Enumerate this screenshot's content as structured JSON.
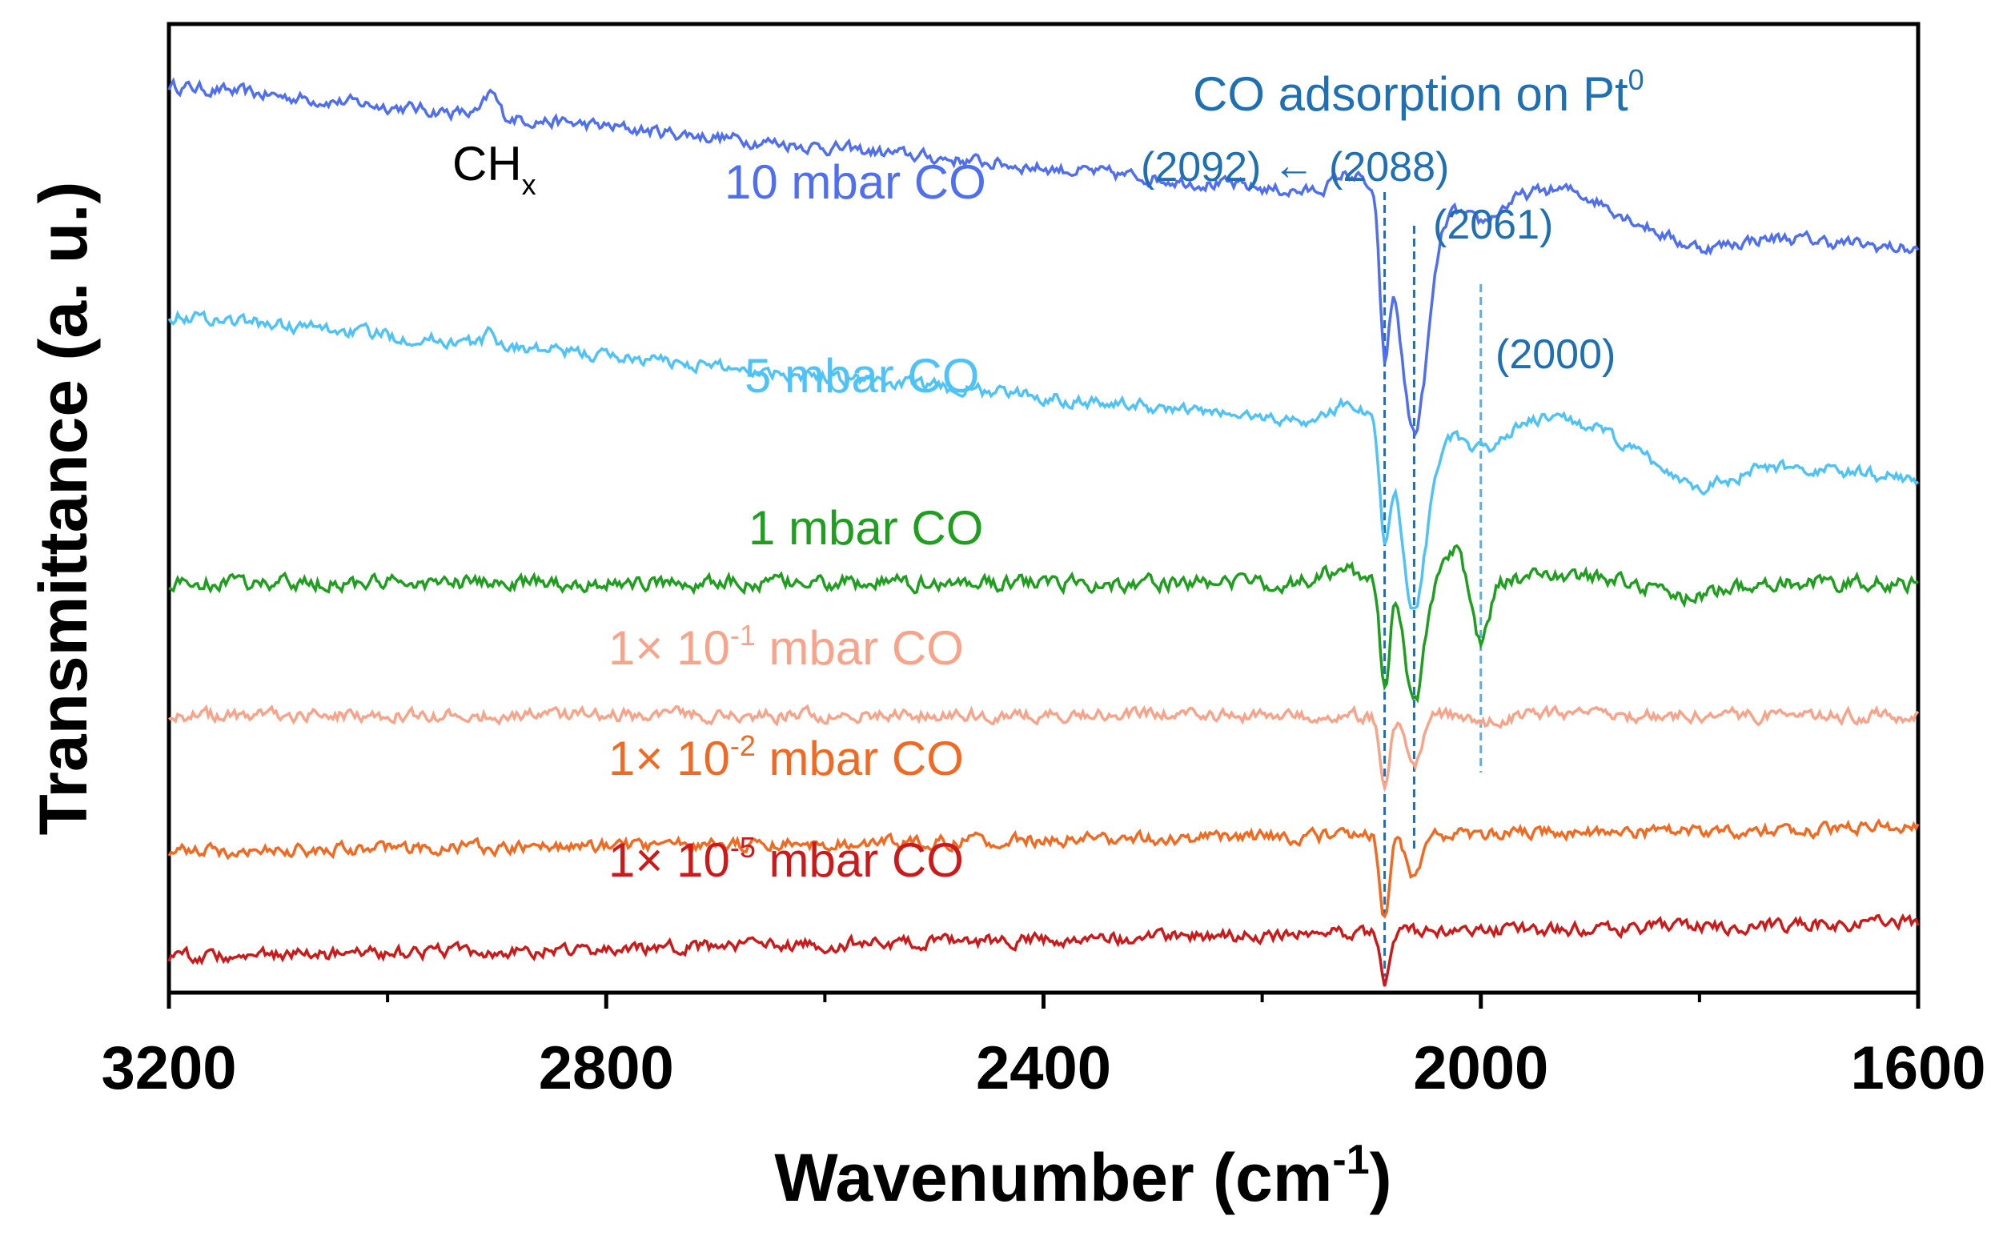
{
  "chart_data": {
    "type": "line",
    "xlabel": "Wavenumber (cm",
    "xlabel_sup": "-1",
    "xlabel_close": ")",
    "ylabel": "Transmittance (a. u.)",
    "xlim": [
      3200,
      1600
    ],
    "x_reversed": true,
    "x_ticks": [
      3200,
      2800,
      2400,
      2000,
      1600
    ],
    "x_tick_labels": [
      "3200",
      "2800",
      "2400",
      "2000",
      "1600"
    ],
    "x_minor_ticks": [
      3000,
      2600,
      2200,
      1800
    ],
    "ylim": [
      -0.05,
      1.05
    ],
    "y_ticks_shown": false,
    "grid": false,
    "series": [
      {
        "name": "10 mbar CO",
        "color": "#4f6ff0",
        "offset": 0.84,
        "slope": 0.14,
        "noise": 0.006,
        "label_parts": [
          {
            "t": "10 mbar CO"
          }
        ],
        "features": [
          {
            "x": 2905,
            "w": 8,
            "a": 0.025
          },
          {
            "x": 2120,
            "w": 22,
            "a": 0.025
          },
          {
            "x": 2088,
            "w": 6,
            "a": -0.16
          },
          {
            "x": 2061,
            "w": 18,
            "a": -0.26
          },
          {
            "x": 2000,
            "w": 20,
            "a": -0.02
          },
          {
            "x": 1925,
            "w": 55,
            "a": 0.03
          },
          {
            "x": 1800,
            "w": 45,
            "a": -0.02
          }
        ]
      },
      {
        "name": "5 mbar CO",
        "color": "#4fc3f7",
        "offset": 0.58,
        "slope": 0.14,
        "noise": 0.006,
        "label_parts": [
          {
            "t": "5 mbar CO"
          }
        ],
        "features": [
          {
            "x": 2905,
            "w": 8,
            "a": 0.012
          },
          {
            "x": 2120,
            "w": 22,
            "a": 0.025
          },
          {
            "x": 2088,
            "w": 6,
            "a": -0.12
          },
          {
            "x": 2061,
            "w": 16,
            "a": -0.2
          },
          {
            "x": 2000,
            "w": 20,
            "a": -0.02
          },
          {
            "x": 1925,
            "w": 55,
            "a": 0.03
          },
          {
            "x": 1800,
            "w": 45,
            "a": -0.03
          }
        ]
      },
      {
        "name": "1 mbar CO",
        "color": "#1f9e1f",
        "offset": 0.415,
        "slope": 0.0,
        "noise": 0.007,
        "label_parts": [
          {
            "t": "1 mbar CO"
          }
        ],
        "features": [
          {
            "x": 2130,
            "w": 25,
            "a": 0.015
          },
          {
            "x": 2088,
            "w": 6,
            "a": -0.12
          },
          {
            "x": 2061,
            "w": 12,
            "a": -0.14
          },
          {
            "x": 2025,
            "w": 12,
            "a": 0.04
          },
          {
            "x": 2000,
            "w": 10,
            "a": -0.07
          },
          {
            "x": 1925,
            "w": 50,
            "a": 0.01
          },
          {
            "x": 1810,
            "w": 40,
            "a": -0.015
          }
        ]
      },
      {
        "name": "1× 10-1 mbar CO",
        "color": "#f7a48a",
        "offset": 0.265,
        "slope": 0.0,
        "noise": 0.006,
        "label_parts": [
          {
            "t": "1× 10"
          },
          {
            "t": "-1",
            "sup": true
          },
          {
            "t": "  mbar CO"
          }
        ],
        "features": [
          {
            "x": 2088,
            "w": 6,
            "a": -0.09
          },
          {
            "x": 2061,
            "w": 10,
            "a": -0.06
          },
          {
            "x": 2000,
            "w": 20,
            "a": -0.01
          }
        ]
      },
      {
        "name": "1× 10-2 mbar CO",
        "color": "#f26a21",
        "offset": 0.13,
        "slope": -0.02,
        "noise": 0.006,
        "label_parts": [
          {
            "t": "1× 10"
          },
          {
            "t": "-2",
            "sup": true
          },
          {
            "t": "  mbar CO"
          }
        ],
        "features": [
          {
            "x": 2088,
            "w": 6,
            "a": -0.095
          },
          {
            "x": 2061,
            "w": 10,
            "a": -0.05
          }
        ]
      },
      {
        "name": "1× 10-5 mbar CO",
        "color": "#cc1a1a",
        "offset": 0.02,
        "slope": -0.03,
        "noise": 0.006,
        "label_parts": [
          {
            "t": "1× 10"
          },
          {
            "t": "-5",
            "sup": true
          },
          {
            "t": "  mbar CO"
          }
        ],
        "features": [
          {
            "x": 2088,
            "w": 6,
            "a": -0.06
          }
        ]
      }
    ],
    "reference_lines": [
      {
        "x": 2088,
        "color": "#1f6fb3"
      },
      {
        "x": 2061,
        "color": "#1f6fb3"
      },
      {
        "x": 2000,
        "color": "#5aaee0"
      }
    ],
    "annotations": {
      "title": "CO adsorption on Pt",
      "title_sup": "0",
      "peak_2092": "(2092)",
      "arrow": "←",
      "peak_2088": "(2088)",
      "peak_2061": "(2061)",
      "peak_2000": "(2000)",
      "chx": "CH",
      "chx_sub": "x"
    },
    "annotation_color": "#1f6fb3"
  }
}
